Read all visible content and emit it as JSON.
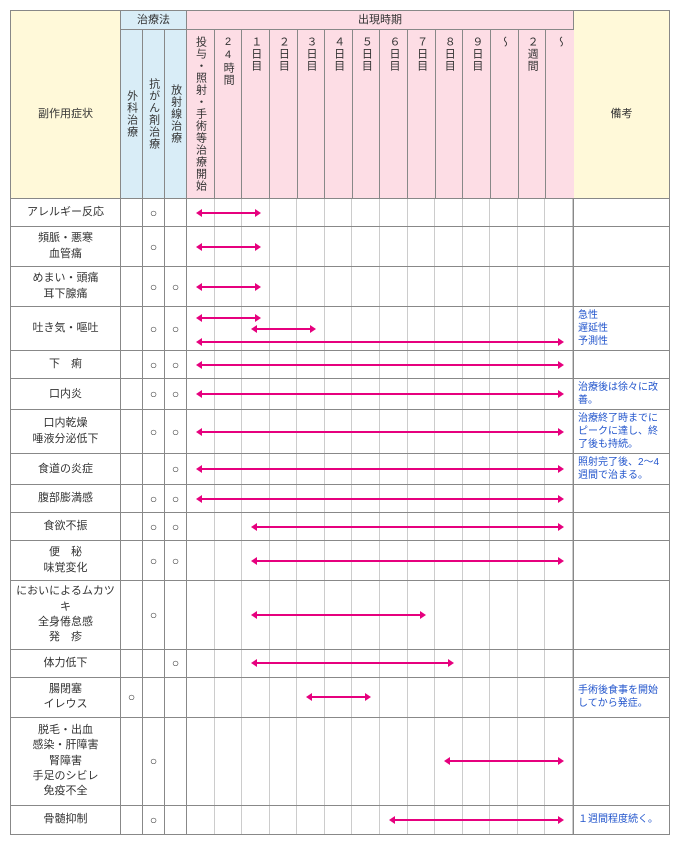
{
  "headers": {
    "symptom": "副作用症状",
    "therapy_group": "治療法",
    "timing_group": "出現時期",
    "note": "備考",
    "therapies": [
      "外科治療",
      "抗がん剤治療",
      "放射線治療"
    ],
    "timing_cols": [
      "投与・照射・手術等治療開始",
      "24時間",
      "１日目",
      "２日目",
      "３日目",
      "４日目",
      "５日目",
      "６日目",
      "７日目",
      "８日目",
      "９日目",
      "〜",
      "２週間",
      "〜"
    ]
  },
  "colors": {
    "arrow": "#e6007e",
    "note_text": "#2255cc",
    "hdr_symptom": "#fff9d9",
    "hdr_therapy": "#d9edf7",
    "hdr_timing": "#fddde5"
  },
  "timeline_columns": 14,
  "rows": [
    {
      "symptom": "アレルギー反応",
      "therapies": [
        false,
        true,
        false
      ],
      "arrows": [
        {
          "start": 0,
          "end": 2
        }
      ],
      "note": ""
    },
    {
      "symptom": "頻脈・悪寒\n血管痛",
      "therapies": [
        false,
        true,
        false
      ],
      "arrows": [
        {
          "start": 0,
          "end": 2
        }
      ],
      "note": ""
    },
    {
      "symptom": "めまい・頭痛\n耳下腺痛",
      "therapies": [
        false,
        true,
        true
      ],
      "arrows": [
        {
          "start": 0,
          "end": 2
        }
      ],
      "note": ""
    },
    {
      "symptom": "吐き気・嘔吐",
      "therapies": [
        false,
        true,
        true
      ],
      "arrows": [
        {
          "start": 0,
          "end": 2,
          "y": 0.25
        },
        {
          "start": 2,
          "end": 4,
          "y": 0.5
        },
        {
          "start": 0,
          "end": 13,
          "y": 0.8
        }
      ],
      "note": "急性\n遅延性\n予測性",
      "tall": true
    },
    {
      "symptom": "下　痢",
      "therapies": [
        false,
        true,
        true
      ],
      "arrows": [
        {
          "start": 0,
          "end": 13
        }
      ],
      "note": ""
    },
    {
      "symptom": "口内炎",
      "therapies": [
        false,
        true,
        true
      ],
      "arrows": [
        {
          "start": 0,
          "end": 13
        }
      ],
      "note": "治療後は徐々に改善。"
    },
    {
      "symptom": "口内乾燥\n唾液分泌低下",
      "therapies": [
        false,
        true,
        true
      ],
      "arrows": [
        {
          "start": 0,
          "end": 13
        }
      ],
      "note": "治療終了時までにピークに達し、終了後も持続。"
    },
    {
      "symptom": "食道の炎症",
      "therapies": [
        false,
        false,
        true
      ],
      "arrows": [
        {
          "start": 0,
          "end": 13
        }
      ],
      "note": "照射完了後、2〜4週間で治まる。"
    },
    {
      "symptom": "腹部膨満感",
      "therapies": [
        false,
        true,
        true
      ],
      "arrows": [
        {
          "start": 0,
          "end": 13
        }
      ],
      "note": ""
    },
    {
      "symptom": "食欲不振",
      "therapies": [
        false,
        true,
        true
      ],
      "arrows": [
        {
          "start": 2,
          "end": 13
        }
      ],
      "note": ""
    },
    {
      "symptom": "便　秘\n味覚変化",
      "therapies": [
        false,
        true,
        true
      ],
      "arrows": [
        {
          "start": 2,
          "end": 13
        }
      ],
      "note": ""
    },
    {
      "symptom": "においによるムカツキ\n全身倦怠感\n発　疹",
      "therapies": [
        false,
        true,
        false
      ],
      "arrows": [
        {
          "start": 2,
          "end": 8
        }
      ],
      "note": "",
      "tall": true
    },
    {
      "symptom": "体力低下",
      "therapies": [
        false,
        false,
        true
      ],
      "arrows": [
        {
          "start": 2,
          "end": 9
        }
      ],
      "note": ""
    },
    {
      "symptom": "腸閉塞\nイレウス",
      "therapies": [
        true,
        false,
        false
      ],
      "arrows": [
        {
          "start": 4,
          "end": 6
        }
      ],
      "note": "手術後食事を開始してから発症。"
    },
    {
      "symptom": "脱毛・出血\n感染・肝障害\n腎障害\n手足のシビレ\n免疫不全",
      "therapies": [
        false,
        true,
        false
      ],
      "arrows": [
        {
          "start": 9,
          "end": 13
        }
      ],
      "note": "",
      "tall": true
    },
    {
      "symptom": "骨髄抑制",
      "therapies": [
        false,
        true,
        false
      ],
      "arrows": [
        {
          "start": 7,
          "end": 13
        }
      ],
      "note": "１週間程度続く。"
    }
  ]
}
